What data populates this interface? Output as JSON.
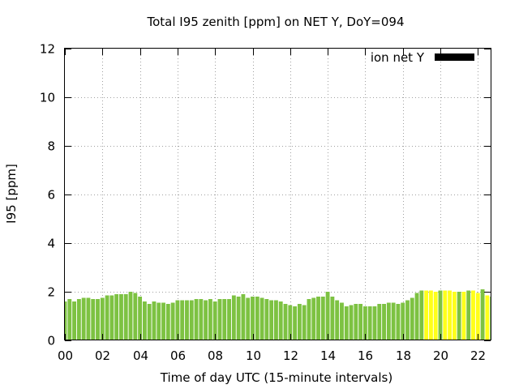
{
  "chart_data": {
    "type": "bar",
    "title": "Total I95 zenith [ppm] on NET Y, DoY=094",
    "xlabel": "Time of day UTC (15-minute intervals)",
    "ylabel": "I95 [ppm]",
    "ylim": [
      0,
      12
    ],
    "xlim": [
      0,
      22.75
    ],
    "y_ticks": [
      "0",
      "2",
      "4",
      "6",
      "8",
      "10",
      "12"
    ],
    "x_ticks": [
      "00",
      "02",
      "04",
      "06",
      "08",
      "10",
      "12",
      "14",
      "16",
      "18",
      "20",
      "22"
    ],
    "x_tick_hours": [
      0,
      2,
      4,
      6,
      8,
      10,
      12,
      14,
      16,
      18,
      20,
      22
    ],
    "y_tick_values": [
      0,
      2,
      4,
      6,
      8,
      10,
      12
    ],
    "grid": true,
    "legend": {
      "label": "ion net Y",
      "color": "#000000",
      "placement": "top-right"
    },
    "colors": {
      "normal": "#7dc242",
      "elevated": "#ffff1a"
    },
    "bar_width_hours": 0.21,
    "series": [
      {
        "x": [
          0.0,
          0.25,
          0.5,
          0.75,
          1.0,
          1.25,
          1.5,
          1.75,
          2.0,
          2.25,
          2.5,
          2.75,
          3.0,
          3.25,
          3.5,
          3.75,
          4.0,
          4.25,
          4.5,
          4.75,
          5.0,
          5.25,
          5.5,
          5.75,
          6.0,
          6.25,
          6.5,
          6.75,
          7.0,
          7.25,
          7.5,
          7.75,
          8.0,
          8.25,
          8.5,
          8.75,
          9.0,
          9.25,
          9.5,
          9.75,
          10.0,
          10.25,
          10.5,
          10.75,
          11.0,
          11.25,
          11.5,
          11.75,
          12.0,
          12.25,
          12.5,
          12.75,
          13.0,
          13.25,
          13.5,
          13.75,
          14.0,
          14.25,
          14.5,
          14.75,
          15.0,
          15.25,
          15.5,
          15.75,
          16.0,
          16.25,
          16.5,
          16.75,
          17.0,
          17.25,
          17.5,
          17.75,
          18.0,
          18.25,
          18.5,
          18.75,
          19.0,
          19.25,
          19.5,
          19.75,
          20.0,
          20.25,
          20.5,
          20.75,
          21.0,
          21.25,
          21.5,
          21.75,
          22.0,
          22.25,
          22.5,
          22.75
        ],
        "values": [
          1.6,
          1.7,
          1.6,
          1.7,
          1.75,
          1.75,
          1.7,
          1.7,
          1.75,
          1.85,
          1.85,
          1.9,
          1.9,
          1.9,
          2.0,
          1.95,
          1.8,
          1.6,
          1.5,
          1.6,
          1.55,
          1.55,
          1.5,
          1.55,
          1.65,
          1.65,
          1.65,
          1.65,
          1.7,
          1.7,
          1.65,
          1.7,
          1.6,
          1.7,
          1.7,
          1.7,
          1.85,
          1.8,
          1.9,
          1.75,
          1.8,
          1.8,
          1.75,
          1.7,
          1.65,
          1.65,
          1.6,
          1.5,
          1.45,
          1.4,
          1.5,
          1.45,
          1.7,
          1.75,
          1.8,
          1.8,
          2.0,
          1.8,
          1.65,
          1.55,
          1.4,
          1.45,
          1.5,
          1.5,
          1.4,
          1.4,
          1.4,
          1.5,
          1.5,
          1.55,
          1.55,
          1.5,
          1.55,
          1.65,
          1.75,
          1.95,
          2.05,
          2.05,
          2.05,
          2.0,
          2.05,
          2.05,
          2.05,
          2.0,
          2.0,
          2.0,
          2.05,
          2.05,
          1.95,
          2.1,
          1.85,
          1.8
        ],
        "elevated": [
          false,
          false,
          false,
          false,
          false,
          false,
          false,
          false,
          false,
          false,
          false,
          false,
          false,
          false,
          false,
          false,
          false,
          false,
          false,
          false,
          false,
          false,
          false,
          false,
          false,
          false,
          false,
          false,
          false,
          false,
          false,
          false,
          false,
          false,
          false,
          false,
          false,
          false,
          false,
          false,
          false,
          false,
          false,
          false,
          false,
          false,
          false,
          false,
          false,
          false,
          false,
          false,
          false,
          false,
          false,
          false,
          false,
          false,
          false,
          false,
          false,
          false,
          false,
          false,
          false,
          false,
          false,
          false,
          false,
          false,
          false,
          false,
          false,
          false,
          false,
          false,
          false,
          true,
          true,
          true,
          false,
          true,
          true,
          true,
          false,
          true,
          false,
          true,
          true,
          false,
          true,
          false,
          false
        ]
      }
    ]
  }
}
